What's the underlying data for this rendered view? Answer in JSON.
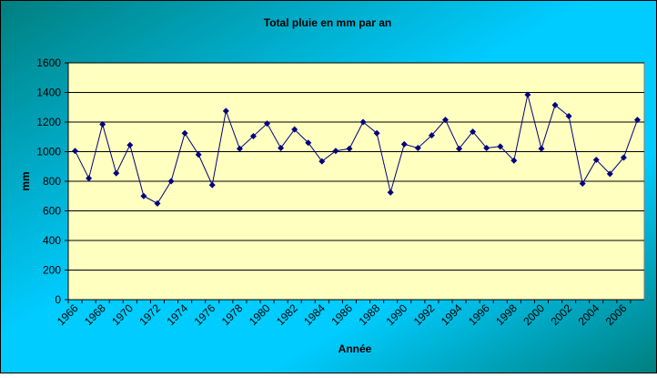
{
  "chart_data": {
    "type": "line",
    "title": "Total pluie en mm par an",
    "x_label": "Année",
    "y_label": "mm",
    "categories": [
      "1966",
      null,
      "1968",
      null,
      "1970",
      null,
      "1972",
      null,
      "1974",
      null,
      "1976",
      null,
      "1978",
      null,
      "1980",
      null,
      "1982",
      null,
      "1984",
      null,
      "1986",
      null,
      "1988",
      null,
      "1990",
      null,
      "1992",
      null,
      "1994",
      null,
      "1996",
      null,
      "1998",
      null,
      "2000",
      null,
      "2002",
      null,
      "2004",
      null,
      "2006",
      null
    ],
    "series": [
      {
        "name": "Total pluie",
        "color": "#000080",
        "values": [
          1005,
          820,
          1185,
          855,
          1045,
          700,
          650,
          800,
          1125,
          980,
          775,
          1275,
          1020,
          1105,
          1190,
          1025,
          1150,
          1060,
          935,
          1005,
          1020,
          1200,
          1125,
          725,
          1050,
          1025,
          1110,
          1215,
          1020,
          1135,
          1025,
          1035,
          940,
          1385,
          1020,
          1315,
          1240,
          785,
          945,
          850,
          960,
          1215
        ]
      }
    ],
    "ylim": [
      0,
      1600
    ],
    "yticks": [
      0,
      200,
      400,
      600,
      800,
      1000,
      1200,
      1400,
      1600
    ],
    "grid": true
  }
}
